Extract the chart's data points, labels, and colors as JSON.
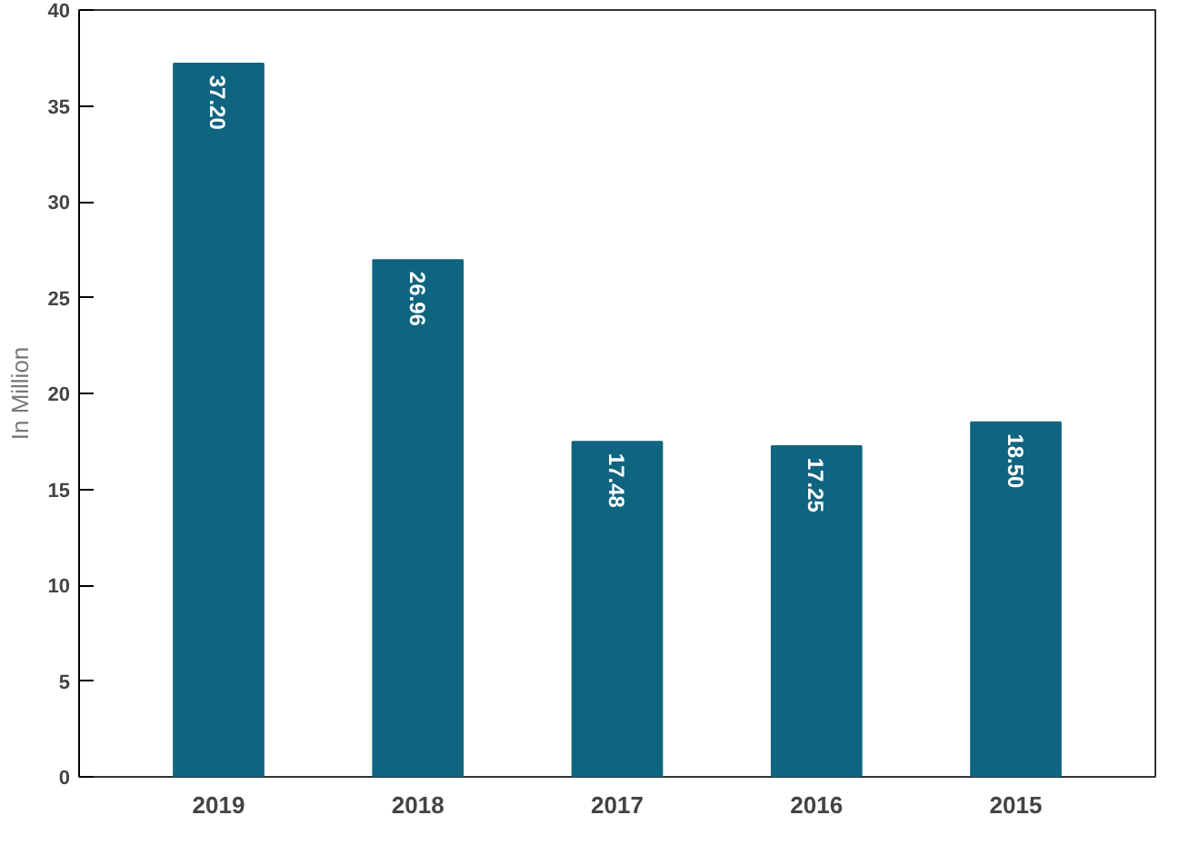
{
  "chart_data": {
    "type": "bar",
    "ylabel": "In Million",
    "categories": [
      "2019",
      "2018",
      "2017",
      "2016",
      "2015"
    ],
    "values": [
      37.2,
      26.96,
      17.48,
      17.25,
      18.5
    ],
    "value_labels": [
      "37.20",
      "26.96",
      "17.48",
      "17.25",
      "18.50"
    ],
    "color": "#0f6480",
    "ylim": [
      0,
      40
    ],
    "yticks": [
      0,
      5,
      10,
      15,
      20,
      25,
      30,
      35,
      40
    ],
    "grid": false
  }
}
